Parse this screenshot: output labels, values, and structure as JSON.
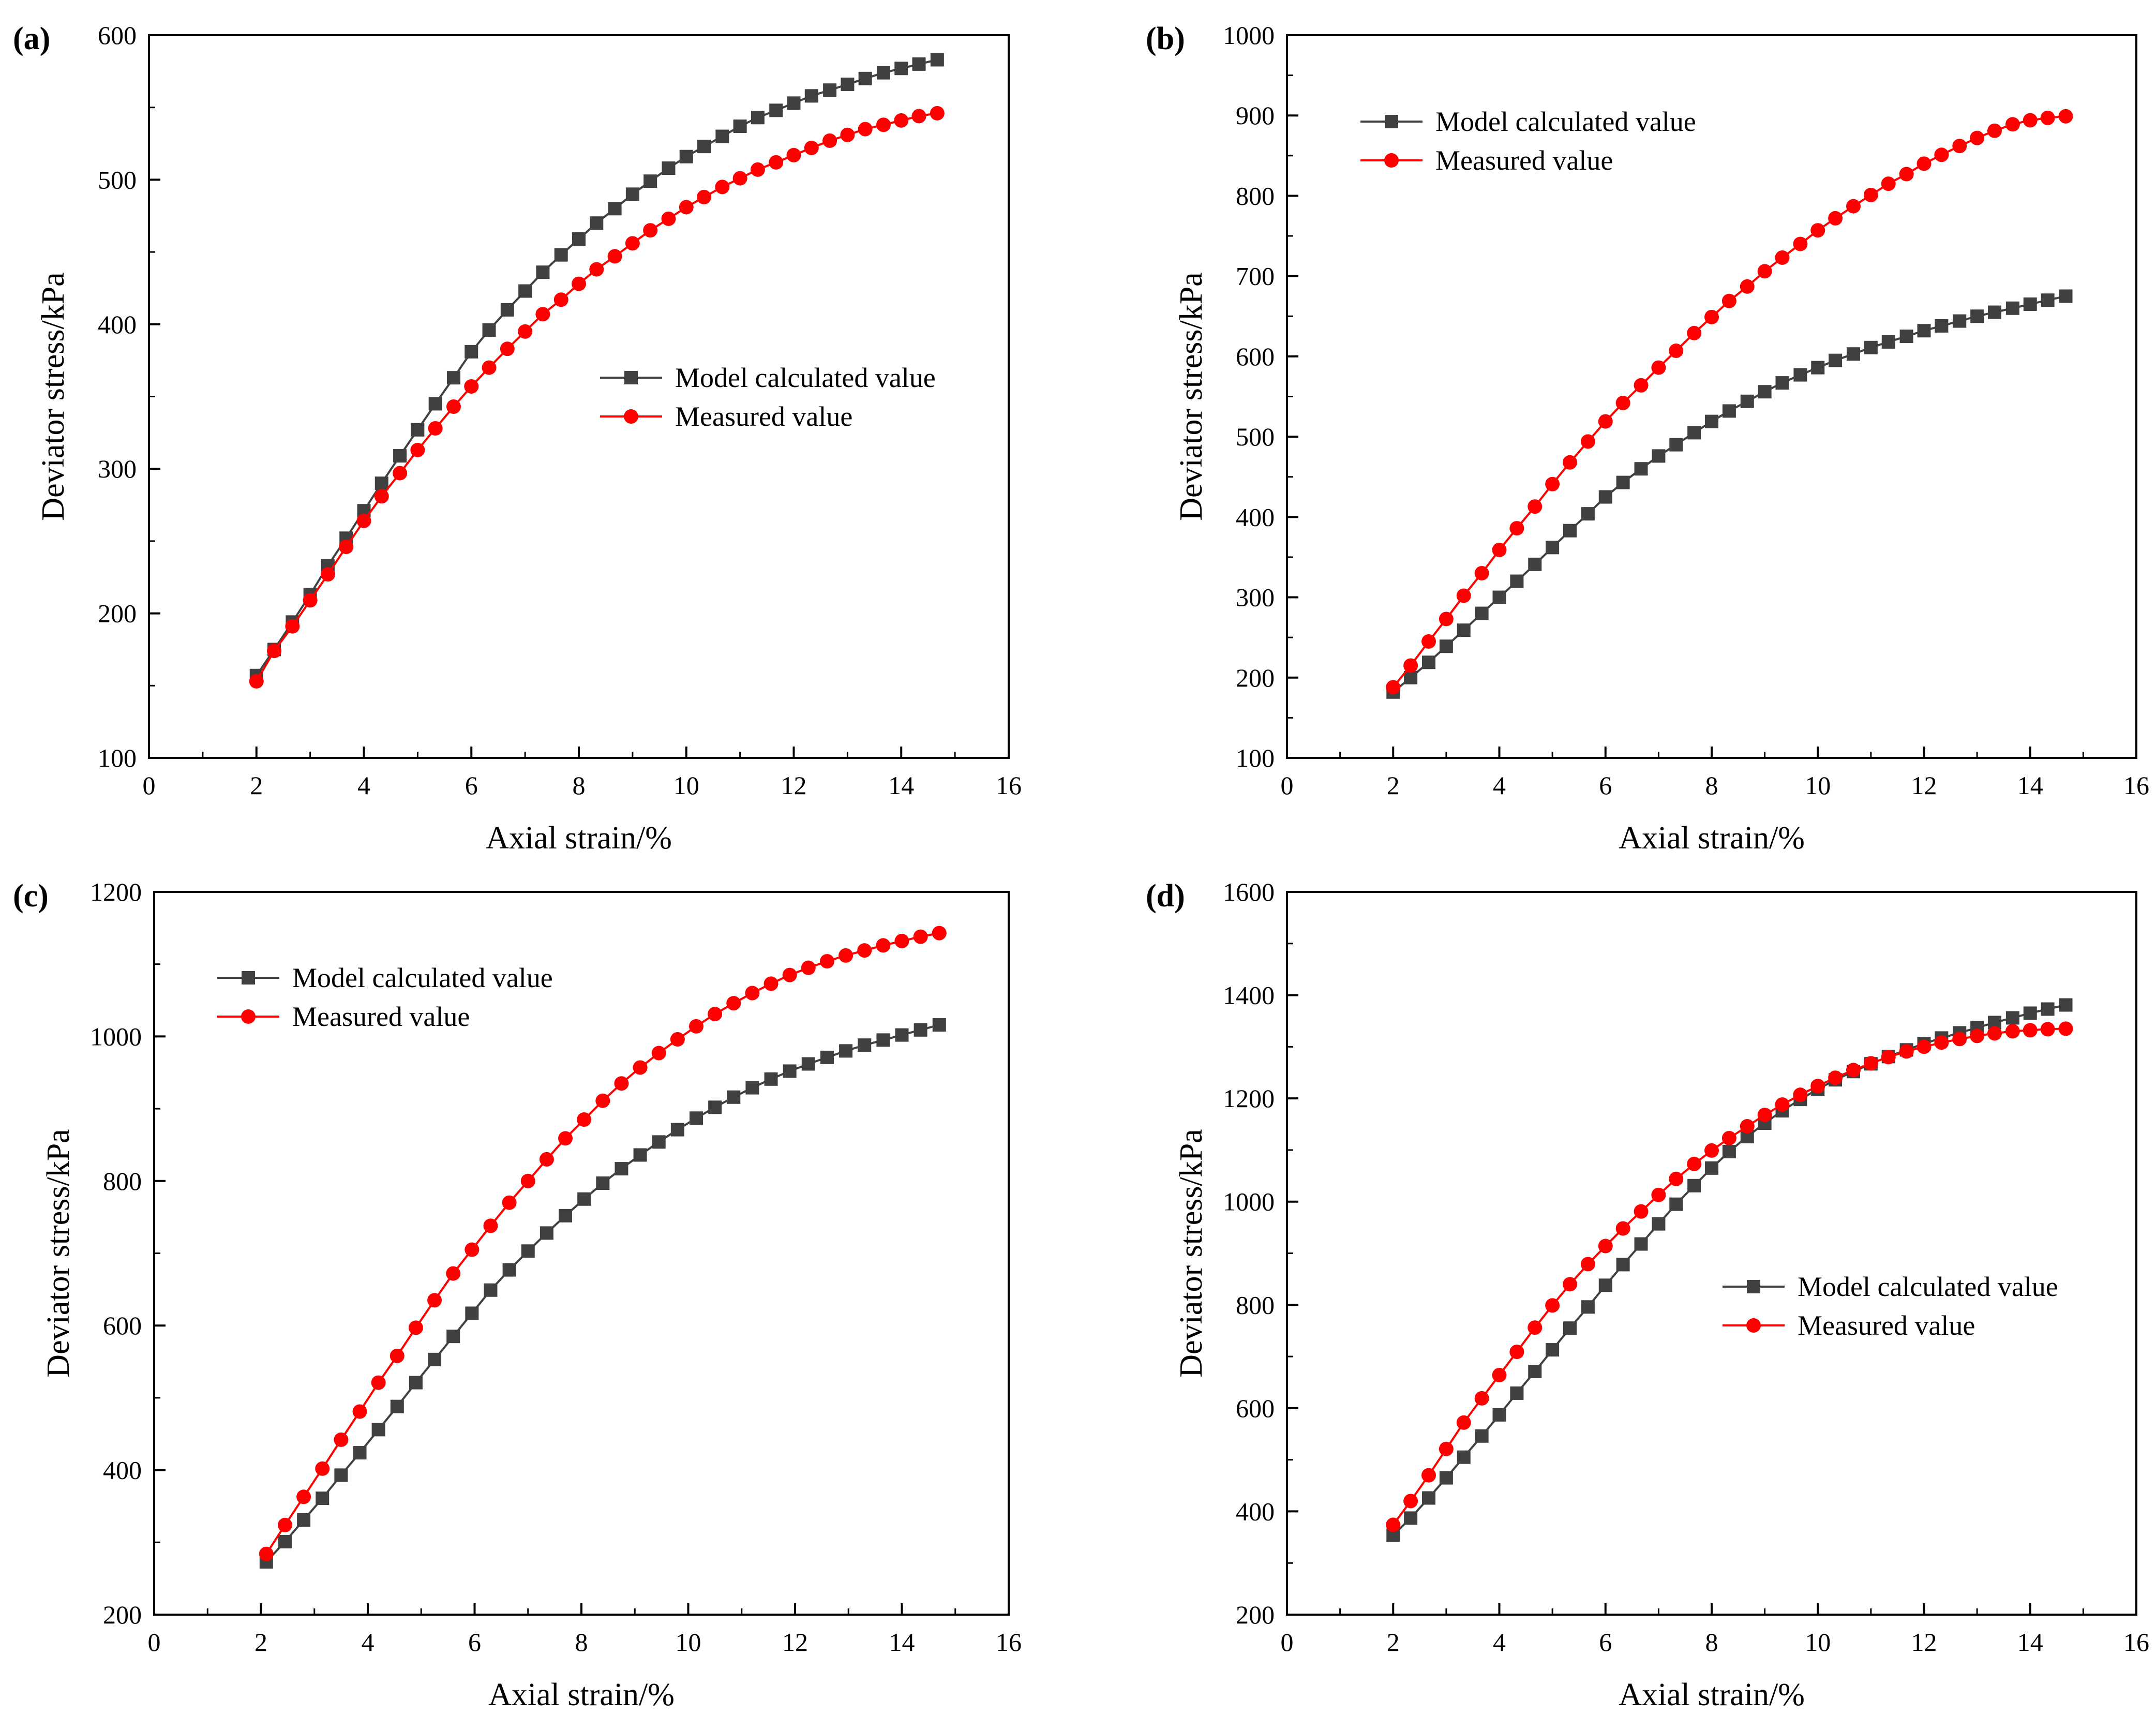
{
  "chart_data": [
    {
      "type": "line",
      "panel_label": "(a)",
      "xlabel": "Axial strain/%",
      "ylabel": "Deviator stress/kPa",
      "xlim": [
        0,
        16
      ],
      "ylim": [
        100,
        600
      ],
      "xticks": [
        0,
        2,
        4,
        6,
        8,
        10,
        12,
        14,
        16
      ],
      "yticks": [
        100,
        200,
        300,
        400,
        500,
        600
      ],
      "grid": false,
      "legend_position": "center-right",
      "series": [
        {
          "name": "Model calculated value",
          "color": "#404040",
          "marker": "square",
          "x": [
            2.0,
            2.33,
            2.67,
            3.0,
            3.33,
            3.67,
            4.0,
            4.33,
            4.67,
            5.0,
            5.33,
            5.67,
            6.0,
            6.33,
            6.67,
            7.0,
            7.33,
            7.67,
            8.0,
            8.33,
            8.67,
            9.0,
            9.33,
            9.67,
            10.0,
            10.33,
            10.67,
            11.0,
            11.33,
            11.67,
            12.0,
            12.33,
            12.67,
            13.0,
            13.33,
            13.67,
            14.0,
            14.33,
            14.67
          ],
          "y": [
            157,
            175,
            194,
            213,
            233,
            252,
            271,
            290,
            309,
            327,
            345,
            363,
            381,
            396,
            410,
            423,
            436,
            448,
            459,
            470,
            480,
            490,
            499,
            508,
            516,
            523,
            530,
            537,
            543,
            548,
            553,
            558,
            562,
            566,
            570,
            574,
            577,
            580,
            583
          ]
        },
        {
          "name": "Measured value",
          "color": "#ff0000",
          "marker": "circle",
          "x": [
            2.0,
            2.33,
            2.67,
            3.0,
            3.33,
            3.67,
            4.0,
            4.33,
            4.67,
            5.0,
            5.33,
            5.67,
            6.0,
            6.33,
            6.67,
            7.0,
            7.33,
            7.67,
            8.0,
            8.33,
            8.67,
            9.0,
            9.33,
            9.67,
            10.0,
            10.33,
            10.67,
            11.0,
            11.33,
            11.67,
            12.0,
            12.33,
            12.67,
            13.0,
            13.33,
            13.67,
            14.0,
            14.33,
            14.67
          ],
          "y": [
            153,
            174,
            191,
            209,
            227,
            246,
            264,
            281,
            297,
            313,
            328,
            343,
            357,
            370,
            383,
            395,
            407,
            417,
            428,
            438,
            447,
            456,
            465,
            473,
            481,
            488,
            495,
            501,
            507,
            512,
            517,
            522,
            527,
            531,
            535,
            538,
            541,
            544,
            546
          ]
        }
      ]
    },
    {
      "type": "line",
      "panel_label": "(b)",
      "xlabel": "Axial strain/%",
      "ylabel": "Deviator stress/kPa",
      "xlim": [
        0,
        16
      ],
      "ylim": [
        100,
        1000
      ],
      "xticks": [
        0,
        2,
        4,
        6,
        8,
        10,
        12,
        14,
        16
      ],
      "yticks": [
        100,
        200,
        300,
        400,
        500,
        600,
        700,
        800,
        900,
        1000
      ],
      "grid": false,
      "legend_position": "top-left",
      "series": [
        {
          "name": "Model calculated value",
          "color": "#404040",
          "marker": "square",
          "x": [
            2.0,
            2.33,
            2.67,
            3.0,
            3.33,
            3.67,
            4.0,
            4.33,
            4.67,
            5.0,
            5.33,
            5.67,
            6.0,
            6.33,
            6.67,
            7.0,
            7.33,
            7.67,
            8.0,
            8.33,
            8.67,
            9.0,
            9.33,
            9.67,
            10.0,
            10.33,
            10.67,
            11.0,
            11.33,
            11.67,
            12.0,
            12.33,
            12.67,
            13.0,
            13.33,
            13.67,
            14.0,
            14.33,
            14.67
          ],
          "y": [
            182,
            200,
            219,
            239,
            259,
            280,
            300,
            320,
            341,
            362,
            383,
            404,
            425,
            443,
            460,
            476,
            490,
            505,
            519,
            532,
            544,
            556,
            567,
            577,
            586,
            595,
            603,
            611,
            618,
            625,
            632,
            638,
            644,
            650,
            655,
            660,
            665,
            670,
            675
          ]
        },
        {
          "name": "Measured value",
          "color": "#ff0000",
          "marker": "circle",
          "x": [
            2.0,
            2.33,
            2.67,
            3.0,
            3.33,
            3.67,
            4.0,
            4.33,
            4.67,
            5.0,
            5.33,
            5.67,
            6.0,
            6.33,
            6.67,
            7.0,
            7.33,
            7.67,
            8.0,
            8.33,
            8.67,
            9.0,
            9.33,
            9.67,
            10.0,
            10.33,
            10.67,
            11.0,
            11.33,
            11.67,
            12.0,
            12.33,
            12.67,
            13.0,
            13.33,
            13.67,
            14.0,
            14.33,
            14.67
          ],
          "y": [
            188,
            215,
            245,
            273,
            302,
            330,
            359,
            386,
            413,
            441,
            468,
            494,
            519,
            542,
            564,
            586,
            607,
            629,
            649,
            669,
            687,
            706,
            723,
            740,
            757,
            772,
            787,
            801,
            815,
            827,
            840,
            851,
            862,
            872,
            881,
            889,
            894,
            897,
            899
          ]
        }
      ]
    },
    {
      "type": "line",
      "panel_label": "(c)",
      "xlabel": "Axial strain/%",
      "ylabel": "Deviator stress/kPa",
      "xlim": [
        0,
        16
      ],
      "ylim": [
        200,
        1200
      ],
      "xticks": [
        0,
        2,
        4,
        6,
        8,
        10,
        12,
        14,
        16
      ],
      "yticks": [
        200,
        400,
        600,
        800,
        1000,
        1200
      ],
      "grid": false,
      "legend_position": "top-left",
      "series": [
        {
          "name": "Model calculated value",
          "color": "#404040",
          "marker": "square",
          "x": [
            2.1,
            2.45,
            2.8,
            3.15,
            3.5,
            3.85,
            4.2,
            4.55,
            4.9,
            5.25,
            5.6,
            5.95,
            6.3,
            6.65,
            7.0,
            7.35,
            7.7,
            8.05,
            8.4,
            8.75,
            9.1,
            9.45,
            9.8,
            10.15,
            10.5,
            10.85,
            11.2,
            11.55,
            11.9,
            12.25,
            12.6,
            12.95,
            13.3,
            13.65,
            14.0,
            14.35,
            14.7
          ],
          "y": [
            273,
            301,
            331,
            361,
            393,
            424,
            456,
            488,
            521,
            553,
            585,
            617,
            649,
            677,
            703,
            728,
            752,
            775,
            797,
            817,
            836,
            854,
            871,
            887,
            902,
            916,
            929,
            941,
            952,
            962,
            971,
            980,
            988,
            995,
            1002,
            1009,
            1016
          ]
        },
        {
          "name": "Measured value",
          "color": "#ff0000",
          "marker": "circle",
          "x": [
            2.1,
            2.45,
            2.8,
            3.15,
            3.5,
            3.85,
            4.2,
            4.55,
            4.9,
            5.25,
            5.6,
            5.95,
            6.3,
            6.65,
            7.0,
            7.35,
            7.7,
            8.05,
            8.4,
            8.75,
            9.1,
            9.45,
            9.8,
            10.15,
            10.5,
            10.85,
            11.2,
            11.55,
            11.9,
            12.25,
            12.6,
            12.95,
            13.3,
            13.65,
            14.0,
            14.35,
            14.7
          ],
          "y": [
            284,
            324,
            363,
            402,
            442,
            481,
            521,
            558,
            597,
            635,
            672,
            705,
            738,
            770,
            800,
            830,
            859,
            885,
            911,
            935,
            957,
            977,
            996,
            1014,
            1031,
            1046,
            1060,
            1073,
            1085,
            1095,
            1104,
            1112,
            1119,
            1126,
            1132,
            1138,
            1143
          ]
        }
      ]
    },
    {
      "type": "line",
      "panel_label": "(d)",
      "xlabel": "Axial strain/%",
      "ylabel": "Deviator stress/kPa",
      "xlim": [
        0,
        16
      ],
      "ylim": [
        200,
        1600
      ],
      "xticks": [
        0,
        2,
        4,
        6,
        8,
        10,
        12,
        14,
        16
      ],
      "yticks": [
        200,
        400,
        600,
        800,
        1000,
        1200,
        1400,
        1600
      ],
      "grid": false,
      "legend_position": "center-right",
      "series": [
        {
          "name": "Model calculated value",
          "color": "#404040",
          "marker": "square",
          "x": [
            2.0,
            2.33,
            2.67,
            3.0,
            3.33,
            3.67,
            4.0,
            4.33,
            4.67,
            5.0,
            5.33,
            5.67,
            6.0,
            6.33,
            6.67,
            7.0,
            7.33,
            7.67,
            8.0,
            8.33,
            8.67,
            9.0,
            9.33,
            9.67,
            10.0,
            10.33,
            10.67,
            11.0,
            11.33,
            11.67,
            12.0,
            12.33,
            12.67,
            13.0,
            13.33,
            13.67,
            14.0,
            14.33,
            14.67
          ],
          "y": [
            354,
            387,
            426,
            465,
            505,
            546,
            587,
            629,
            671,
            713,
            755,
            796,
            838,
            878,
            918,
            957,
            995,
            1031,
            1065,
            1097,
            1126,
            1152,
            1176,
            1198,
            1218,
            1236,
            1252,
            1267,
            1281,
            1294,
            1306,
            1317,
            1327,
            1337,
            1347,
            1356,
            1365,
            1373,
            1381
          ]
        },
        {
          "name": "Measured value",
          "color": "#ff0000",
          "marker": "circle",
          "x": [
            2.0,
            2.33,
            2.67,
            3.0,
            3.33,
            3.67,
            4.0,
            4.33,
            4.67,
            5.0,
            5.33,
            5.67,
            6.0,
            6.33,
            6.67,
            7.0,
            7.33,
            7.67,
            8.0,
            8.33,
            8.67,
            9.0,
            9.33,
            9.67,
            10.0,
            10.33,
            10.67,
            11.0,
            11.33,
            11.67,
            12.0,
            12.33,
            12.67,
            13.0,
            13.33,
            13.67,
            14.0,
            14.33,
            14.67
          ],
          "y": [
            374,
            420,
            470,
            521,
            572,
            619,
            664,
            709,
            756,
            799,
            840,
            879,
            914,
            948,
            981,
            1013,
            1044,
            1073,
            1099,
            1123,
            1146,
            1168,
            1188,
            1207,
            1224,
            1240,
            1255,
            1268,
            1280,
            1291,
            1300,
            1308,
            1315,
            1321,
            1326,
            1330,
            1332,
            1334,
            1335
          ]
        }
      ]
    }
  ]
}
